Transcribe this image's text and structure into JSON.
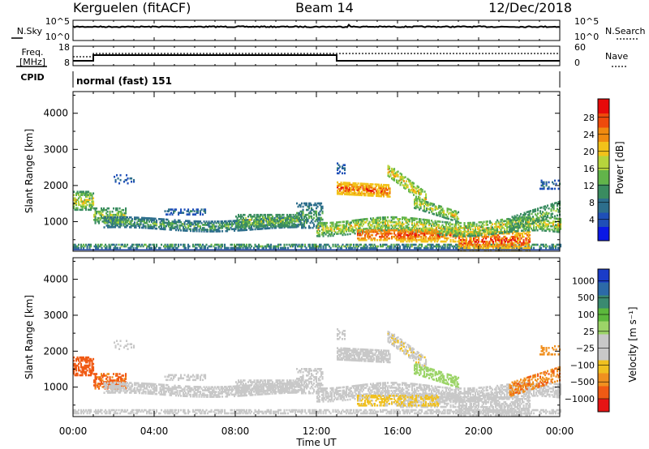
{
  "header": {
    "station": "Kerguelen (fitACF)",
    "beam": "Beam 14",
    "date": "12/Dec/2018"
  },
  "panels": {
    "nsky": {
      "label": "N.Sky",
      "right_label": "N.Search",
      "ticks_left": [
        "10^5",
        "10^0"
      ],
      "ticks_right": [
        "10^5",
        "10^0"
      ]
    },
    "freq": {
      "label_line1": "Freq.",
      "label_line2": "[MHz]",
      "right_label": "Nave",
      "ticks_left": [
        "18",
        "8"
      ],
      "ticks_right": [
        "60",
        "0"
      ]
    },
    "cpid": {
      "label": "CPID",
      "value": "normal (fast) 151"
    }
  },
  "chart_data": [
    {
      "type": "heatmap",
      "quantity": "power",
      "ylabel": "Slant Range [km]",
      "xlabel": "",
      "yticks": [
        1000,
        2000,
        3000,
        4000
      ],
      "ylim": [
        180,
        4600
      ],
      "xlim_hours": [
        0,
        24
      ],
      "colorbar": {
        "label": "Power [dB]",
        "ticks": [
          "4",
          "8",
          "12",
          "16",
          "20",
          "24",
          "28"
        ],
        "colors": [
          "#0a18e6",
          "#1f4fb8",
          "#2d6e8c",
          "#3a8c60",
          "#62b44a",
          "#b6d43c",
          "#f2c21a",
          "#f08a10",
          "#ee4a0c",
          "#e60a0a"
        ]
      }
    },
    {
      "type": "heatmap",
      "quantity": "velocity",
      "ylabel": "Slant Range [km]",
      "xlabel": "Time UT",
      "yticks": [
        1000,
        2000,
        3000,
        4000
      ],
      "ylim": [
        180,
        4600
      ],
      "xlim_hours": [
        0,
        24
      ],
      "xticks": [
        "00:00",
        "04:00",
        "08:00",
        "12:00",
        "16:00",
        "20:00",
        "00:00"
      ],
      "colorbar": {
        "label": "Velocity [m s⁻¹]",
        "ticks": [
          "1000",
          "500",
          "100",
          "25",
          "−25",
          "−100",
          "−500",
          "−1000"
        ],
        "colors": [
          "#1a3cc8",
          "#2c6aa8",
          "#3a8a70",
          "#5cb83c",
          "#9cd468",
          "#c8c8c8",
          "#c8c8c8",
          "#f0c020",
          "#f09020",
          "#f05a14",
          "#e61414"
        ]
      }
    }
  ]
}
